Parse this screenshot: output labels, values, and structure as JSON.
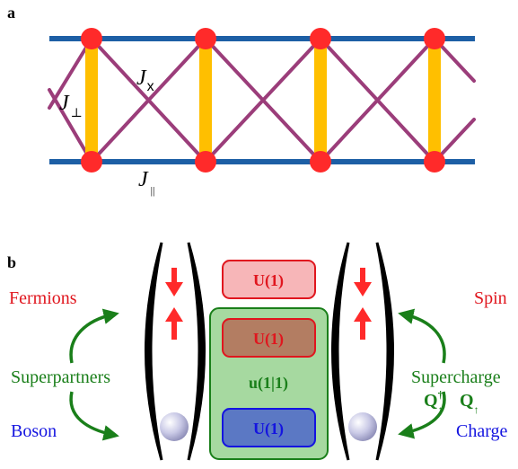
{
  "panel_a": {
    "label": "a",
    "J_perp": "J",
    "J_perp_sub": "⊥",
    "J_x": "J",
    "J_x_sub": "x",
    "J_par": "J",
    "J_par_sub": "||"
  },
  "panel_b": {
    "label": "b",
    "left": {
      "fermions": "Fermions",
      "superpartners": "Superpartners",
      "boson": "Boson"
    },
    "right": {
      "spin": "Spin",
      "supercharge": "Supercharge",
      "q_dagger": "Q",
      "q_dagger_sup": "†",
      "q_dagger_sub": "↑",
      "q": "Q",
      "q_sub": "↑",
      "charge": "Charge"
    },
    "boxes": {
      "top_u1": "U(1)",
      "mid_u1": "U(1)",
      "super": "u(1|1)",
      "bottom_u1": "U(1)"
    }
  },
  "colors": {
    "rail_blue": "#1d5fa5",
    "diag_purple": "#9b3d7a",
    "rung_yellow": "#ffbf00",
    "node_red": "#ff2a2a",
    "red_text": "#e0161e",
    "green_text": "#1a7f1a",
    "blue_text": "#1414e0"
  }
}
